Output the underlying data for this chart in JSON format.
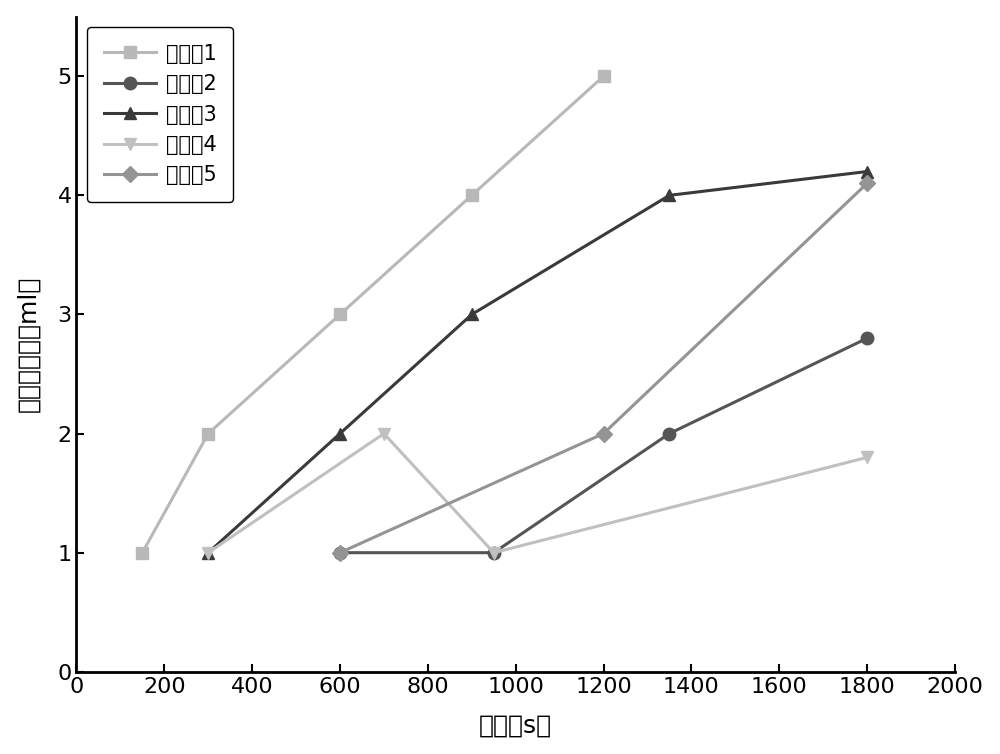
{
  "series": [
    {
      "label": "实施儖1",
      "x": [
        150,
        300,
        600,
        900,
        1200
      ],
      "y": [
        1,
        2,
        3,
        4,
        5
      ],
      "color": "#b8b8b8",
      "marker": "s",
      "markersize": 9,
      "linewidth": 2.2
    },
    {
      "label": "实施儖2",
      "x": [
        600,
        950,
        1350,
        1800
      ],
      "y": [
        1,
        1,
        2,
        2.8
      ],
      "color": "#555555",
      "marker": "o",
      "markersize": 9,
      "linewidth": 2.2
    },
    {
      "label": "实施儖3",
      "x": [
        300,
        600,
        900,
        1350,
        1800
      ],
      "y": [
        1,
        2,
        3,
        4,
        4.2
      ],
      "color": "#3a3a3a",
      "marker": "^",
      "markersize": 9,
      "linewidth": 2.2
    },
    {
      "label": "实施儖4",
      "x": [
        300,
        700,
        950,
        1800
      ],
      "y": [
        1,
        2,
        1,
        1.8
      ],
      "color": "#c0c0c0",
      "marker": "v",
      "markersize": 9,
      "linewidth": 2.2
    },
    {
      "label": "实施儖5",
      "x": [
        600,
        1200,
        1800
      ],
      "y": [
        1,
        2,
        4.1
      ],
      "color": "#949494",
      "marker": "D",
      "markersize": 8,
      "linewidth": 2.2
    }
  ],
  "xlabel": "时间（s）",
  "ylabel": "氢气产生量（ml）",
  "xlim": [
    0,
    2000
  ],
  "ylim": [
    0,
    5.5
  ],
  "xticks": [
    0,
    200,
    400,
    600,
    800,
    1000,
    1200,
    1400,
    1600,
    1800,
    2000
  ],
  "yticks": [
    0,
    1,
    2,
    3,
    4,
    5
  ],
  "legend_loc": "upper left",
  "background_color": "#ffffff",
  "axis_linewidth": 2.0,
  "tick_fontsize": 16,
  "label_fontsize": 18,
  "legend_fontsize": 15
}
